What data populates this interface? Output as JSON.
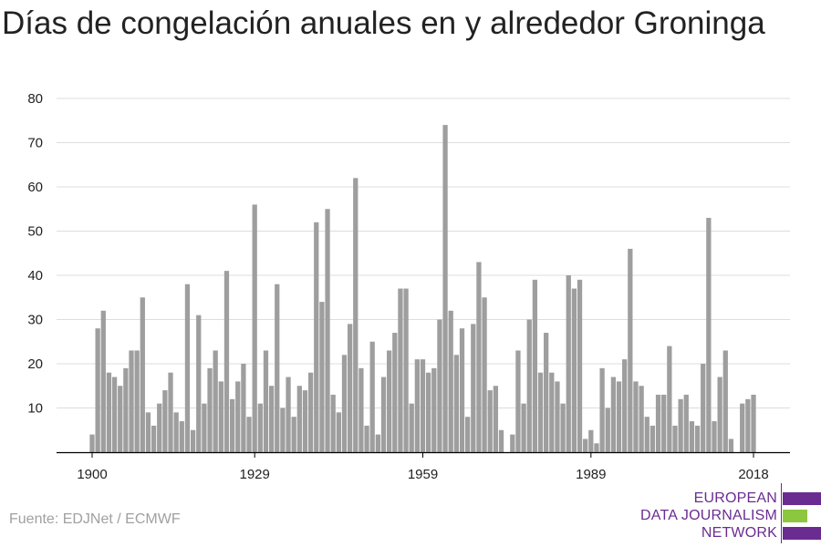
{
  "title": "Días de congelación anuales en y alrededor Groninga",
  "source": "Fuente: EDJNet / ECMWF",
  "logo": {
    "lines": [
      "EUROPEAN",
      "DATA JOURNALISM",
      "NETWORK"
    ],
    "colors": {
      "purple": "#6a2c91",
      "green": "#8dc63f"
    }
  },
  "colors": {
    "bar": "#9e9e9e",
    "grid": "#dddddd",
    "axis": "#000000"
  },
  "chart_data": {
    "type": "bar",
    "x": [
      1900,
      1901,
      1902,
      1903,
      1904,
      1905,
      1906,
      1907,
      1908,
      1909,
      1910,
      1911,
      1912,
      1913,
      1914,
      1915,
      1916,
      1917,
      1918,
      1919,
      1920,
      1921,
      1922,
      1923,
      1924,
      1925,
      1926,
      1927,
      1928,
      1929,
      1930,
      1931,
      1932,
      1933,
      1934,
      1935,
      1936,
      1937,
      1938,
      1939,
      1940,
      1941,
      1942,
      1943,
      1944,
      1945,
      1946,
      1947,
      1948,
      1949,
      1950,
      1951,
      1952,
      1953,
      1954,
      1955,
      1956,
      1957,
      1958,
      1959,
      1960,
      1961,
      1962,
      1963,
      1964,
      1965,
      1966,
      1967,
      1968,
      1969,
      1970,
      1971,
      1972,
      1973,
      1974,
      1975,
      1976,
      1977,
      1978,
      1979,
      1980,
      1981,
      1982,
      1983,
      1984,
      1985,
      1986,
      1987,
      1988,
      1989,
      1990,
      1991,
      1992,
      1993,
      1994,
      1995,
      1996,
      1997,
      1998,
      1999,
      2000,
      2001,
      2002,
      2003,
      2004,
      2005,
      2006,
      2007,
      2008,
      2009,
      2010,
      2011,
      2012,
      2013,
      2014,
      2015,
      2016,
      2017,
      2018
    ],
    "values": [
      4,
      28,
      32,
      18,
      17,
      15,
      19,
      23,
      23,
      35,
      9,
      6,
      11,
      14,
      18,
      9,
      7,
      38,
      5,
      31,
      11,
      19,
      23,
      16,
      41,
      12,
      16,
      20,
      8,
      56,
      11,
      23,
      15,
      38,
      10,
      17,
      8,
      15,
      14,
      18,
      52,
      34,
      55,
      13,
      9,
      22,
      29,
      62,
      19,
      6,
      25,
      4,
      17,
      23,
      27,
      37,
      37,
      11,
      21,
      21,
      18,
      19,
      30,
      74,
      32,
      22,
      28,
      8,
      29,
      43,
      35,
      14,
      15,
      5,
      0,
      4,
      23,
      11,
      30,
      39,
      18,
      27,
      18,
      16,
      11,
      40,
      37,
      39,
      3,
      5,
      2,
      19,
      10,
      17,
      16,
      21,
      46,
      16,
      15,
      8,
      6,
      13,
      13,
      24,
      6,
      12,
      13,
      7,
      6,
      20,
      53,
      7,
      17,
      23,
      3,
      0,
      11,
      12,
      13
    ],
    "xticks": [
      1900,
      1929,
      1959,
      1989,
      2018
    ],
    "yticks": [
      10,
      20,
      30,
      40,
      50,
      60,
      70,
      80
    ],
    "ylim": [
      0,
      80
    ],
    "xlim": [
      1900,
      2018
    ],
    "grid": true,
    "legend": "none"
  }
}
